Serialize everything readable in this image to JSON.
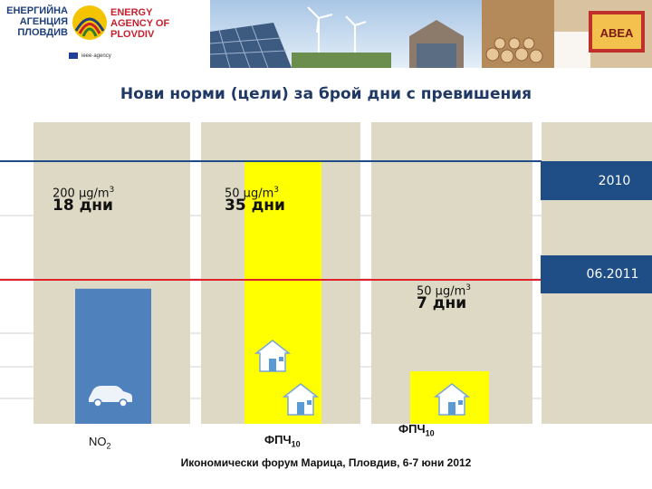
{
  "header": {
    "logo_bg_line1": "ЕНЕРГИЙНА",
    "logo_bg_line2": "АГЕНЦИЯ",
    "logo_bg_line3": "ПЛОВДИВ",
    "logo_en_line1": "ENERGY",
    "logo_en_line2": "AGENCY OF",
    "logo_en_line3": "PLOVDIV",
    "strip_text": "ieee·agency",
    "badge_text": "ABEA"
  },
  "title": "Нови норми (цели) за брой дни с превишения",
  "footer": "Икономически форум Марица, Пловдив, 6-7 юни 2012",
  "colors": {
    "no2_bar": "#4f81bd",
    "pm10_bar": "#ffff00",
    "panel": "#ddd9c4",
    "line_2010": "#1f4e86",
    "line_2011": "#e0202a",
    "box": "#1f4e86"
  },
  "chart_data": {
    "type": "bar",
    "categories": [
      "NO2",
      "ФПЧ10",
      "ФПЧ10"
    ],
    "x_labels": [
      {
        "main": "NO",
        "sub": "2"
      },
      {
        "main": "ФПЧ",
        "sub": "10"
      },
      {
        "main": "ФПЧ",
        "sub": "10"
      }
    ],
    "series": [
      {
        "values": [
          18,
          35,
          7
        ]
      }
    ],
    "annotations": [
      {
        "limit": "200 μg/m",
        "sup": "3",
        "days": "18 дни"
      },
      {
        "limit": "50 μg/m",
        "sup": "3",
        "days": "35 дни"
      },
      {
        "limit": "50 μg/m",
        "sup": "3",
        "days": "7 дни"
      }
    ],
    "reference_lines": [
      {
        "label": "2010"
      },
      {
        "label": "06.2011"
      }
    ],
    "icons": [
      "car-icon",
      "house-icon",
      "house-icon",
      "house-icon"
    ],
    "grid": true
  }
}
